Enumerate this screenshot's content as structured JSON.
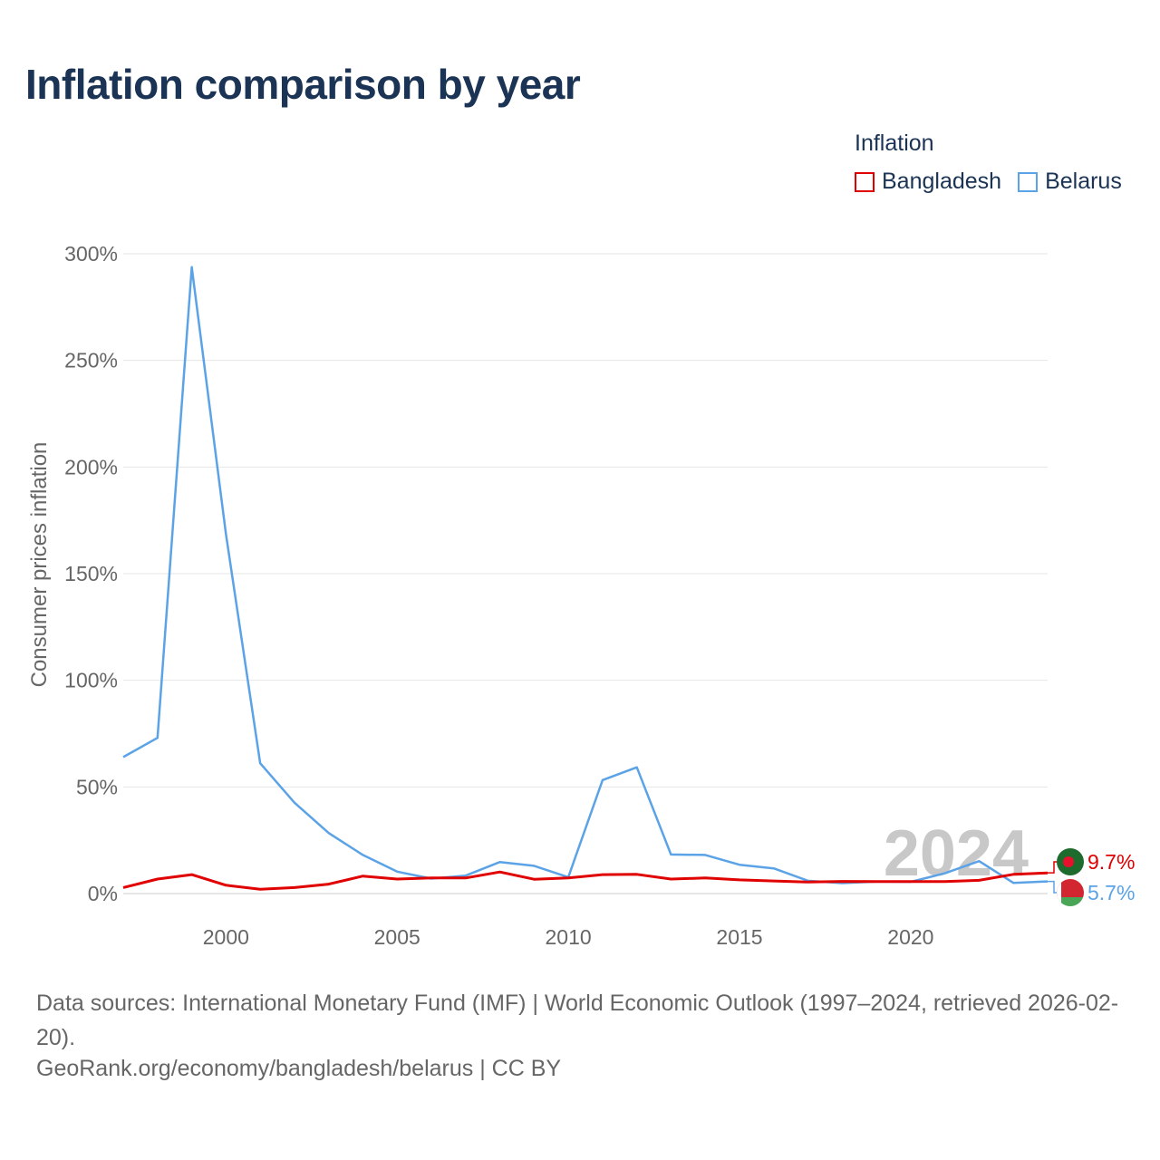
{
  "title": "Inflation comparison by year",
  "legend": {
    "title": "Inflation",
    "items": [
      {
        "label": "Bangladesh",
        "color": "#e00000"
      },
      {
        "label": "Belarus",
        "color": "#5ba3e6"
      }
    ]
  },
  "chart_data": {
    "type": "line",
    "ylabel": "Consumer prices inflation",
    "xlabel": "",
    "xlim": [
      1997,
      2024
    ],
    "ylim": [
      0,
      300
    ],
    "yticks": [
      0,
      50,
      100,
      150,
      200,
      250,
      300
    ],
    "ytick_labels": [
      "0%",
      "50%",
      "100%",
      "150%",
      "200%",
      "250%",
      "300%"
    ],
    "xticks": [
      2000,
      2005,
      2010,
      2015,
      2020
    ],
    "xtick_labels": [
      "2000",
      "2005",
      "2010",
      "2015",
      "2020"
    ],
    "current_year_label": "2024",
    "x": [
      1997,
      1998,
      1999,
      2000,
      2001,
      2002,
      2003,
      2004,
      2005,
      2006,
      2007,
      2008,
      2009,
      2010,
      2011,
      2012,
      2013,
      2014,
      2015,
      2016,
      2017,
      2018,
      2019,
      2020,
      2021,
      2022,
      2023,
      2024
    ],
    "series": [
      {
        "name": "Bangladesh",
        "color": "#e00000",
        "end_label": "9.7%",
        "values": [
          2.8,
          6.8,
          8.9,
          3.9,
          2.0,
          2.8,
          4.4,
          8.2,
          6.8,
          7.3,
          7.3,
          10.1,
          6.7,
          7.3,
          8.9,
          9.0,
          6.8,
          7.3,
          6.4,
          5.9,
          5.4,
          5.7,
          5.6,
          5.6,
          5.6,
          6.2,
          9.0,
          9.7
        ]
      },
      {
        "name": "Belarus",
        "color": "#5ba3e6",
        "end_label": "5.7%",
        "values": [
          64.0,
          73.0,
          293.7,
          168.6,
          61.1,
          42.6,
          28.4,
          18.1,
          10.3,
          7.0,
          8.4,
          14.8,
          13.0,
          7.7,
          53.2,
          59.2,
          18.3,
          18.1,
          13.5,
          11.8,
          6.0,
          4.9,
          5.6,
          5.5,
          9.5,
          15.2,
          5.0,
          5.7
        ]
      }
    ]
  },
  "footer": {
    "sources": "Data sources: International Monetary Fund (IMF) | World Economic Outlook (1997–2024, retrieved 2026-02-20).",
    "credit": "GeoRank.org/economy/bangladesh/belarus | CC BY"
  }
}
